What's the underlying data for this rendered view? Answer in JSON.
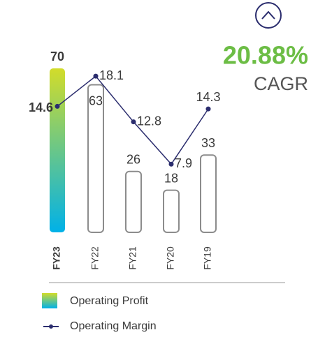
{
  "chart_data": {
    "type": "bar-line",
    "annotation": "20.88%",
    "annotation_label": "CAGR",
    "categories": [
      "FY23",
      "FY22",
      "FY21",
      "FY20",
      "FY19"
    ],
    "series": [
      {
        "name": "Operating Profit",
        "color": "#8c8c8c",
        "highlight_colors": [
          "#d2dc2a",
          "#00b1e8"
        ],
        "values": [
          70,
          63,
          26,
          18,
          33
        ]
      },
      {
        "name": "Operating Margin",
        "color": "#2b2d6e",
        "axis": "y2",
        "values": [
          14.6,
          18.1,
          12.8,
          7.9,
          14.3
        ]
      }
    ],
    "ylim": [
      0,
      70
    ],
    "y2lim": [
      0,
      19
    ],
    "accent_color": "#6cbd45"
  }
}
